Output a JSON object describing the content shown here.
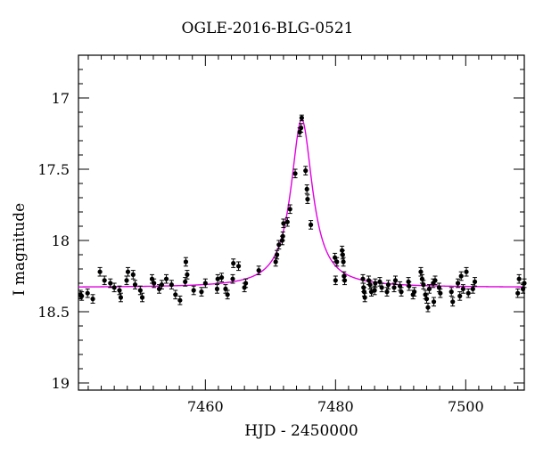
{
  "chart_data": {
    "type": "scatter",
    "title": "OGLE-2016-BLG-0521",
    "xlabel": "HJD - 2450000",
    "ylabel": "I magnitude",
    "xlim": [
      7440.5,
      7509
    ],
    "ylim": [
      19.05,
      16.7
    ],
    "y_inverted": true,
    "x_ticks": [
      7460,
      7480,
      7500
    ],
    "y_ticks": [
      17,
      17.5,
      18,
      18.5,
      19
    ],
    "y_tick_labels": [
      "17",
      "17.5",
      "18",
      "18.5",
      "19"
    ],
    "x_tick_labels": [
      "7460",
      "7480",
      "7500"
    ],
    "grid": false,
    "point_color": "#000000",
    "model_color": "#e000e0",
    "model": {
      "baseline": 18.33,
      "peak_mag": 17.15,
      "t0": 7474.8,
      "width_days": 2.0
    },
    "points": [
      [
        7440.8,
        18.38,
        0.03
      ],
      [
        7441.0,
        18.39,
        0.03
      ],
      [
        7441.9,
        18.37,
        0.03
      ],
      [
        7442.7,
        18.41,
        0.03
      ],
      [
        7443.8,
        18.22,
        0.03
      ],
      [
        7444.5,
        18.28,
        0.03
      ],
      [
        7445.4,
        18.3,
        0.03
      ],
      [
        7446.0,
        18.33,
        0.03
      ],
      [
        7446.8,
        18.35,
        0.03
      ],
      [
        7447.0,
        18.4,
        0.03
      ],
      [
        7447.9,
        18.28,
        0.03
      ],
      [
        7448.1,
        18.22,
        0.03
      ],
      [
        7448.9,
        18.24,
        0.03
      ],
      [
        7449.2,
        18.31,
        0.03
      ],
      [
        7450.0,
        18.35,
        0.03
      ],
      [
        7450.3,
        18.4,
        0.03
      ],
      [
        7451.8,
        18.27,
        0.03
      ],
      [
        7452.1,
        18.3,
        0.03
      ],
      [
        7452.9,
        18.34,
        0.03
      ],
      [
        7453.3,
        18.31,
        0.03
      ],
      [
        7454.0,
        18.27,
        0.03
      ],
      [
        7454.8,
        18.31,
        0.03
      ],
      [
        7455.4,
        18.38,
        0.03
      ],
      [
        7456.1,
        18.42,
        0.03
      ],
      [
        7456.9,
        18.29,
        0.03
      ],
      [
        7457.0,
        18.15,
        0.03
      ],
      [
        7457.2,
        18.24,
        0.03
      ],
      [
        7458.2,
        18.35,
        0.03
      ],
      [
        7459.4,
        18.36,
        0.03
      ],
      [
        7460.0,
        18.3,
        0.03
      ],
      [
        7461.8,
        18.34,
        0.03
      ],
      [
        7461.9,
        18.27,
        0.03
      ],
      [
        7462.5,
        18.26,
        0.03
      ],
      [
        7463.1,
        18.34,
        0.03
      ],
      [
        7463.4,
        18.38,
        0.03
      ],
      [
        7464.2,
        18.27,
        0.03
      ],
      [
        7464.3,
        18.16,
        0.03
      ],
      [
        7465.1,
        18.18,
        0.03
      ],
      [
        7466.0,
        18.33,
        0.03
      ],
      [
        7466.2,
        18.3,
        0.03
      ],
      [
        7468.2,
        18.21,
        0.03
      ],
      [
        7470.8,
        18.15,
        0.03
      ],
      [
        7471.0,
        18.1,
        0.03
      ],
      [
        7471.3,
        18.03,
        0.03
      ],
      [
        7471.8,
        18.0,
        0.03
      ],
      [
        7471.9,
        17.97,
        0.03
      ],
      [
        7472.0,
        17.88,
        0.03
      ],
      [
        7472.6,
        17.87,
        0.03
      ],
      [
        7473.0,
        17.78,
        0.03
      ],
      [
        7473.8,
        17.53,
        0.03
      ],
      [
        7474.5,
        17.24,
        0.03
      ],
      [
        7474.7,
        17.21,
        0.03
      ],
      [
        7474.8,
        17.14,
        0.02
      ],
      [
        7475.4,
        17.51,
        0.03
      ],
      [
        7475.6,
        17.64,
        0.03
      ],
      [
        7475.7,
        17.71,
        0.03
      ],
      [
        7476.2,
        17.89,
        0.03
      ],
      [
        7479.9,
        18.12,
        0.03
      ],
      [
        7480.2,
        18.15,
        0.03
      ],
      [
        7480.0,
        18.28,
        0.03
      ],
      [
        7481.0,
        18.07,
        0.03
      ],
      [
        7481.1,
        18.1,
        0.03
      ],
      [
        7481.2,
        18.15,
        0.03
      ],
      [
        7481.3,
        18.25,
        0.03
      ],
      [
        7481.4,
        18.28,
        0.03
      ],
      [
        7484.2,
        18.27,
        0.03
      ],
      [
        7484.3,
        18.33,
        0.03
      ],
      [
        7484.4,
        18.36,
        0.03
      ],
      [
        7484.5,
        18.4,
        0.03
      ],
      [
        7485.1,
        18.28,
        0.03
      ],
      [
        7485.3,
        18.31,
        0.03
      ],
      [
        7485.5,
        18.36,
        0.03
      ],
      [
        7486.0,
        18.35,
        0.03
      ],
      [
        7486.1,
        18.3,
        0.03
      ],
      [
        7486.8,
        18.29,
        0.03
      ],
      [
        7487.1,
        18.33,
        0.03
      ],
      [
        7487.9,
        18.36,
        0.03
      ],
      [
        7488.1,
        18.31,
        0.03
      ],
      [
        7489.0,
        18.33,
        0.03
      ],
      [
        7489.2,
        18.28,
        0.03
      ],
      [
        7489.9,
        18.32,
        0.03
      ],
      [
        7490.1,
        18.36,
        0.03
      ],
      [
        7491.2,
        18.29,
        0.03
      ],
      [
        7491.3,
        18.32,
        0.03
      ],
      [
        7491.9,
        18.38,
        0.03
      ],
      [
        7492.1,
        18.36,
        0.03
      ],
      [
        7493.1,
        18.22,
        0.03
      ],
      [
        7493.3,
        18.27,
        0.03
      ],
      [
        7493.5,
        18.31,
        0.03
      ],
      [
        7493.8,
        18.38,
        0.03
      ],
      [
        7494.0,
        18.41,
        0.03
      ],
      [
        7494.2,
        18.47,
        0.03
      ],
      [
        7494.4,
        18.34,
        0.03
      ],
      [
        7495.0,
        18.3,
        0.03
      ],
      [
        7495.1,
        18.43,
        0.03
      ],
      [
        7495.3,
        18.28,
        0.03
      ],
      [
        7495.9,
        18.33,
        0.03
      ],
      [
        7496.1,
        18.37,
        0.03
      ],
      [
        7497.8,
        18.36,
        0.03
      ],
      [
        7498.0,
        18.43,
        0.03
      ],
      [
        7498.8,
        18.3,
        0.03
      ],
      [
        7499.1,
        18.39,
        0.03
      ],
      [
        7499.3,
        18.25,
        0.03
      ],
      [
        7499.6,
        18.34,
        0.03
      ],
      [
        7500.1,
        18.22,
        0.03
      ],
      [
        7500.4,
        18.37,
        0.03
      ],
      [
        7501.1,
        18.34,
        0.03
      ],
      [
        7501.4,
        18.29,
        0.03
      ],
      [
        7508.0,
        18.37,
        0.03
      ],
      [
        7508.2,
        18.27,
        0.03
      ],
      [
        7508.8,
        18.34,
        0.03
      ],
      [
        7509.0,
        18.3,
        0.03
      ]
    ]
  }
}
